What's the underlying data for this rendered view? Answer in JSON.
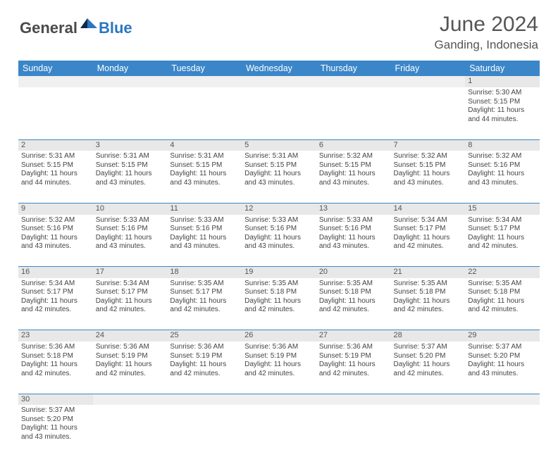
{
  "logo": {
    "text1": "General",
    "text2": "Blue"
  },
  "title": "June 2024",
  "location": "Ganding, Indonesia",
  "colors": {
    "header_bg": "#3b86c8",
    "header_text": "#ffffff",
    "daynum_bg": "#e8e8e8",
    "row_border": "#3b86c8",
    "text": "#444444",
    "logo_gray": "#4a4a4a",
    "logo_blue": "#2b76c2"
  },
  "day_headers": [
    "Sunday",
    "Monday",
    "Tuesday",
    "Wednesday",
    "Thursday",
    "Friday",
    "Saturday"
  ],
  "weeks": [
    [
      null,
      null,
      null,
      null,
      null,
      null,
      {
        "n": "1",
        "sunrise": "5:30 AM",
        "sunset": "5:15 PM",
        "daylight": "11 hours and 44 minutes."
      }
    ],
    [
      {
        "n": "2",
        "sunrise": "5:31 AM",
        "sunset": "5:15 PM",
        "daylight": "11 hours and 44 minutes."
      },
      {
        "n": "3",
        "sunrise": "5:31 AM",
        "sunset": "5:15 PM",
        "daylight": "11 hours and 43 minutes."
      },
      {
        "n": "4",
        "sunrise": "5:31 AM",
        "sunset": "5:15 PM",
        "daylight": "11 hours and 43 minutes."
      },
      {
        "n": "5",
        "sunrise": "5:31 AM",
        "sunset": "5:15 PM",
        "daylight": "11 hours and 43 minutes."
      },
      {
        "n": "6",
        "sunrise": "5:32 AM",
        "sunset": "5:15 PM",
        "daylight": "11 hours and 43 minutes."
      },
      {
        "n": "7",
        "sunrise": "5:32 AM",
        "sunset": "5:15 PM",
        "daylight": "11 hours and 43 minutes."
      },
      {
        "n": "8",
        "sunrise": "5:32 AM",
        "sunset": "5:16 PM",
        "daylight": "11 hours and 43 minutes."
      }
    ],
    [
      {
        "n": "9",
        "sunrise": "5:32 AM",
        "sunset": "5:16 PM",
        "daylight": "11 hours and 43 minutes."
      },
      {
        "n": "10",
        "sunrise": "5:33 AM",
        "sunset": "5:16 PM",
        "daylight": "11 hours and 43 minutes."
      },
      {
        "n": "11",
        "sunrise": "5:33 AM",
        "sunset": "5:16 PM",
        "daylight": "11 hours and 43 minutes."
      },
      {
        "n": "12",
        "sunrise": "5:33 AM",
        "sunset": "5:16 PM",
        "daylight": "11 hours and 43 minutes."
      },
      {
        "n": "13",
        "sunrise": "5:33 AM",
        "sunset": "5:16 PM",
        "daylight": "11 hours and 43 minutes."
      },
      {
        "n": "14",
        "sunrise": "5:34 AM",
        "sunset": "5:17 PM",
        "daylight": "11 hours and 42 minutes."
      },
      {
        "n": "15",
        "sunrise": "5:34 AM",
        "sunset": "5:17 PM",
        "daylight": "11 hours and 42 minutes."
      }
    ],
    [
      {
        "n": "16",
        "sunrise": "5:34 AM",
        "sunset": "5:17 PM",
        "daylight": "11 hours and 42 minutes."
      },
      {
        "n": "17",
        "sunrise": "5:34 AM",
        "sunset": "5:17 PM",
        "daylight": "11 hours and 42 minutes."
      },
      {
        "n": "18",
        "sunrise": "5:35 AM",
        "sunset": "5:17 PM",
        "daylight": "11 hours and 42 minutes."
      },
      {
        "n": "19",
        "sunrise": "5:35 AM",
        "sunset": "5:18 PM",
        "daylight": "11 hours and 42 minutes."
      },
      {
        "n": "20",
        "sunrise": "5:35 AM",
        "sunset": "5:18 PM",
        "daylight": "11 hours and 42 minutes."
      },
      {
        "n": "21",
        "sunrise": "5:35 AM",
        "sunset": "5:18 PM",
        "daylight": "11 hours and 42 minutes."
      },
      {
        "n": "22",
        "sunrise": "5:35 AM",
        "sunset": "5:18 PM",
        "daylight": "11 hours and 42 minutes."
      }
    ],
    [
      {
        "n": "23",
        "sunrise": "5:36 AM",
        "sunset": "5:18 PM",
        "daylight": "11 hours and 42 minutes."
      },
      {
        "n": "24",
        "sunrise": "5:36 AM",
        "sunset": "5:19 PM",
        "daylight": "11 hours and 42 minutes."
      },
      {
        "n": "25",
        "sunrise": "5:36 AM",
        "sunset": "5:19 PM",
        "daylight": "11 hours and 42 minutes."
      },
      {
        "n": "26",
        "sunrise": "5:36 AM",
        "sunset": "5:19 PM",
        "daylight": "11 hours and 42 minutes."
      },
      {
        "n": "27",
        "sunrise": "5:36 AM",
        "sunset": "5:19 PM",
        "daylight": "11 hours and 42 minutes."
      },
      {
        "n": "28",
        "sunrise": "5:37 AM",
        "sunset": "5:20 PM",
        "daylight": "11 hours and 42 minutes."
      },
      {
        "n": "29",
        "sunrise": "5:37 AM",
        "sunset": "5:20 PM",
        "daylight": "11 hours and 43 minutes."
      }
    ],
    [
      {
        "n": "30",
        "sunrise": "5:37 AM",
        "sunset": "5:20 PM",
        "daylight": "11 hours and 43 minutes."
      },
      null,
      null,
      null,
      null,
      null,
      null
    ]
  ],
  "labels": {
    "sunrise": "Sunrise: ",
    "sunset": "Sunset: ",
    "daylight": "Daylight: "
  }
}
